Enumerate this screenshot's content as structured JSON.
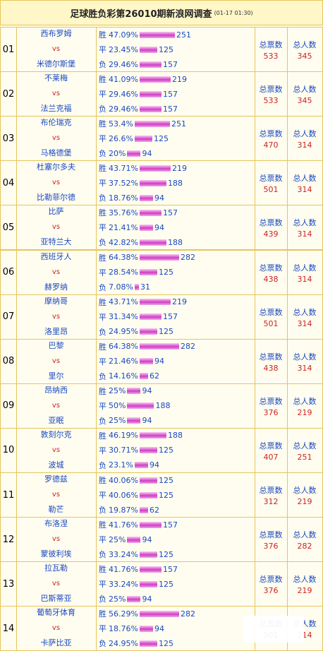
{
  "header": {
    "title": "足球胜负彩第26010期新浪网调查",
    "time": "(01-17 01:30)"
  },
  "labels": {
    "votes": "总票数",
    "people": "总人数",
    "vs": "vs"
  },
  "matches": [
    {
      "no": "01",
      "home": "西布罗姆",
      "away": "米德尔斯堡",
      "lines": [
        {
          "k": "胜",
          "pct": "47.09%",
          "n": 251
        },
        {
          "k": "平",
          "pct": "23.45%",
          "n": 125
        },
        {
          "k": "负",
          "pct": "29.46%",
          "n": 157
        }
      ],
      "votes": "533",
      "people": "345"
    },
    {
      "no": "02",
      "home": "不莱梅",
      "away": "法兰克福",
      "lines": [
        {
          "k": "胜",
          "pct": "41.09%",
          "n": 219
        },
        {
          "k": "平",
          "pct": "29.46%",
          "n": 157
        },
        {
          "k": "负",
          "pct": "29.46%",
          "n": 157
        }
      ],
      "votes": "533",
      "people": "345"
    },
    {
      "no": "03",
      "home": "布伦瑞克",
      "away": "马格德堡",
      "lines": [
        {
          "k": "胜",
          "pct": "53.4%",
          "n": 251
        },
        {
          "k": "平",
          "pct": "26.6%",
          "n": 125
        },
        {
          "k": "负",
          "pct": "20%",
          "n": 94
        }
      ],
      "votes": "470",
      "people": "314"
    },
    {
      "no": "04",
      "home": "杜塞尔多夫",
      "away": "比勒菲尔德",
      "lines": [
        {
          "k": "胜",
          "pct": "43.71%",
          "n": 219
        },
        {
          "k": "平",
          "pct": "37.52%",
          "n": 188
        },
        {
          "k": "负",
          "pct": "18.76%",
          "n": 94
        }
      ],
      "votes": "501",
      "people": "314"
    },
    {
      "no": "05",
      "home": "比萨",
      "away": "亚特兰大",
      "lines": [
        {
          "k": "胜",
          "pct": "35.76%",
          "n": 157
        },
        {
          "k": "平",
          "pct": "21.41%",
          "n": 94
        },
        {
          "k": "负",
          "pct": "42.82%",
          "n": 188
        }
      ],
      "votes": "439",
      "people": "314"
    },
    {
      "no": "06",
      "home": "西班牙人",
      "away": "赫罗纳",
      "lines": [
        {
          "k": "胜",
          "pct": "64.38%",
          "n": 282
        },
        {
          "k": "平",
          "pct": "28.54%",
          "n": 125
        },
        {
          "k": "负",
          "pct": "7.08%",
          "n": 31
        }
      ],
      "votes": "438",
      "people": "314"
    },
    {
      "no": "07",
      "home": "摩纳哥",
      "away": "洛里昂",
      "lines": [
        {
          "k": "胜",
          "pct": "43.71%",
          "n": 219
        },
        {
          "k": "平",
          "pct": "31.34%",
          "n": 157
        },
        {
          "k": "负",
          "pct": "24.95%",
          "n": 125
        }
      ],
      "votes": "501",
      "people": "314"
    },
    {
      "no": "08",
      "home": "巴黎",
      "away": "里尔",
      "lines": [
        {
          "k": "胜",
          "pct": "64.38%",
          "n": 282
        },
        {
          "k": "平",
          "pct": "21.46%",
          "n": 94
        },
        {
          "k": "负",
          "pct": "14.16%",
          "n": 62
        }
      ],
      "votes": "438",
      "people": "314"
    },
    {
      "no": "09",
      "home": "昂纳西",
      "away": "亚眠",
      "lines": [
        {
          "k": "胜",
          "pct": "25%",
          "n": 94
        },
        {
          "k": "平",
          "pct": "50%",
          "n": 188
        },
        {
          "k": "负",
          "pct": "25%",
          "n": 94
        }
      ],
      "votes": "376",
      "people": "219"
    },
    {
      "no": "10",
      "home": "敦刻尔克",
      "away": "波城",
      "lines": [
        {
          "k": "胜",
          "pct": "46.19%",
          "n": 188
        },
        {
          "k": "平",
          "pct": "30.71%",
          "n": 125
        },
        {
          "k": "负",
          "pct": "23.1%",
          "n": 94
        }
      ],
      "votes": "407",
      "people": "251"
    },
    {
      "no": "11",
      "home": "罗德兹",
      "away": "勒芒",
      "lines": [
        {
          "k": "胜",
          "pct": "40.06%",
          "n": 125
        },
        {
          "k": "平",
          "pct": "40.06%",
          "n": 125
        },
        {
          "k": "负",
          "pct": "19.87%",
          "n": 62
        }
      ],
      "votes": "312",
      "people": "219"
    },
    {
      "no": "12",
      "home": "布洛涅",
      "away": "蒙彼利埃",
      "lines": [
        {
          "k": "胜",
          "pct": "41.76%",
          "n": 157
        },
        {
          "k": "平",
          "pct": "25%",
          "n": 94
        },
        {
          "k": "负",
          "pct": "33.24%",
          "n": 125
        }
      ],
      "votes": "376",
      "people": "282"
    },
    {
      "no": "13",
      "home": "拉瓦勒",
      "away": "巴斯蒂亚",
      "lines": [
        {
          "k": "胜",
          "pct": "41.76%",
          "n": 157
        },
        {
          "k": "平",
          "pct": "33.24%",
          "n": 125
        },
        {
          "k": "负",
          "pct": "25%",
          "n": 94
        }
      ],
      "votes": "376",
      "people": "219"
    },
    {
      "no": "14",
      "home": "葡萄牙体育",
      "away": "卡萨比亚",
      "lines": [
        {
          "k": "胜",
          "pct": "56.29%",
          "n": 282
        },
        {
          "k": "平",
          "pct": "18.76%",
          "n": 94
        },
        {
          "k": "负",
          "pct": "24.95%",
          "n": 125
        }
      ],
      "votes": "501",
      "people": "314"
    }
  ]
}
